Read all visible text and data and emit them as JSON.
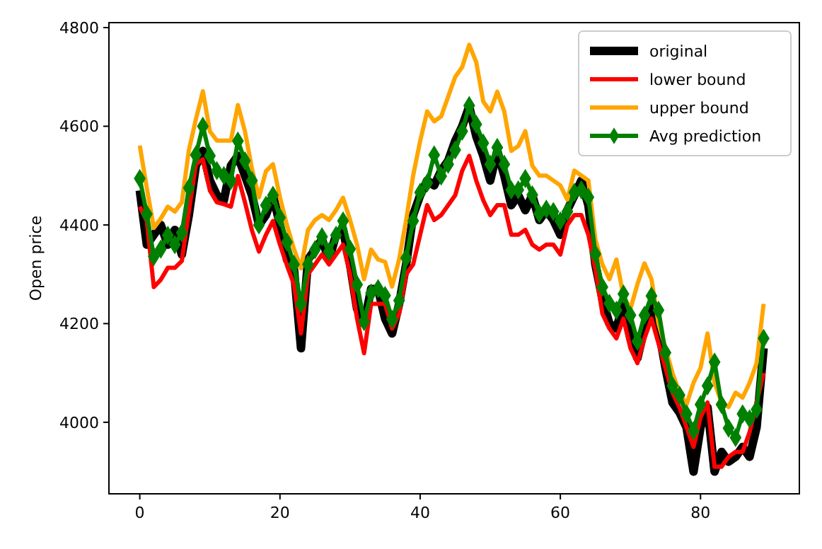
{
  "chart_data": {
    "type": "line",
    "ylabel": "Open price",
    "x": [
      0,
      1,
      2,
      3,
      4,
      5,
      6,
      7,
      8,
      9,
      10,
      11,
      12,
      13,
      14,
      15,
      16,
      17,
      18,
      19,
      20,
      21,
      22,
      23,
      24,
      25,
      26,
      27,
      28,
      29,
      30,
      31,
      32,
      33,
      34,
      35,
      36,
      37,
      38,
      39,
      40,
      41,
      42,
      43,
      44,
      45,
      46,
      47,
      48,
      49,
      50,
      51,
      52,
      53,
      54,
      55,
      56,
      57,
      58,
      59,
      60,
      61,
      62,
      63,
      64,
      65,
      66,
      67,
      68,
      69,
      70,
      71,
      72,
      73,
      74,
      75,
      76,
      77,
      78,
      79,
      80,
      81,
      82,
      83,
      84,
      85,
      86,
      87,
      88,
      89
    ],
    "xlim": [
      -4.4,
      94.1
    ],
    "xticks": [
      0,
      20,
      40,
      60,
      80
    ],
    "ylim": [
      3855,
      4810
    ],
    "yticks": [
      4000,
      4200,
      4400,
      4600,
      4800
    ],
    "legend": "top right",
    "grid": false,
    "series": [
      {
        "name": "original",
        "color": "#000000",
        "values": [
          4470,
          4360,
          4380,
          4400,
          4360,
          4390,
          4340,
          4420,
          4520,
          4550,
          4490,
          4460,
          4450,
          4520,
          4540,
          4500,
          4460,
          4400,
          4420,
          4460,
          4400,
          4330,
          4310,
          4150,
          4330,
          4350,
          4370,
          4330,
          4380,
          4390,
          4320,
          4230,
          4200,
          4270,
          4270,
          4210,
          4180,
          4240,
          4320,
          4420,
          4460,
          4490,
          4480,
          4510,
          4530,
          4570,
          4600,
          4640,
          4580,
          4540,
          4490,
          4550,
          4500,
          4440,
          4460,
          4430,
          4460,
          4410,
          4430,
          4410,
          4380,
          4430,
          4460,
          4490,
          4440,
          4320,
          4250,
          4200,
          4190,
          4240,
          4170,
          4130,
          4190,
          4240,
          4190,
          4110,
          4040,
          4020,
          3990,
          3900,
          3990,
          4030,
          3900,
          3940,
          3920,
          3930,
          3950,
          3930,
          3990,
          4150
        ]
      },
      {
        "name": "lower bound",
        "color": "#ff0000",
        "values": [
          4437,
          4408,
          4274,
          4289,
          4313,
          4313,
          4327,
          4427,
          4523,
          4533,
          4470,
          4446,
          4442,
          4437,
          4499,
          4446,
          4389,
          4346,
          4380,
          4408,
          4360,
          4318,
          4279,
          4180,
          4300,
          4320,
          4340,
          4320,
          4340,
          4360,
          4300,
          4210,
          4140,
          4240,
          4240,
          4240,
          4190,
          4220,
          4300,
          4320,
          4380,
          4440,
          4410,
          4420,
          4440,
          4460,
          4510,
          4540,
          4490,
          4450,
          4420,
          4440,
          4440,
          4380,
          4380,
          4390,
          4360,
          4350,
          4360,
          4360,
          4340,
          4400,
          4420,
          4420,
          4380,
          4310,
          4220,
          4190,
          4170,
          4210,
          4150,
          4120,
          4170,
          4210,
          4160,
          4110,
          4060,
          4030,
          3990,
          3950,
          4010,
          4040,
          3910,
          3910,
          3930,
          3940,
          3940,
          3980,
          4040,
          4100
        ]
      },
      {
        "name": "upper bound",
        "color": "#ffa500",
        "values": [
          4561,
          4475,
          4394,
          4413,
          4437,
          4427,
          4446,
          4551,
          4614,
          4671,
          4590,
          4571,
          4571,
          4571,
          4643,
          4590,
          4514,
          4456,
          4509,
          4523,
          4456,
          4399,
          4351,
          4312,
          4390,
          4410,
          4420,
          4410,
          4430,
          4455,
          4410,
          4360,
          4290,
          4350,
          4330,
          4325,
          4275,
          4330,
          4410,
          4500,
          4570,
          4630,
          4610,
          4620,
          4660,
          4700,
          4720,
          4765,
          4730,
          4650,
          4630,
          4670,
          4630,
          4550,
          4560,
          4590,
          4520,
          4500,
          4500,
          4490,
          4480,
          4451,
          4510,
          4500,
          4490,
          4370,
          4320,
          4290,
          4330,
          4256,
          4230,
          4280,
          4322,
          4290,
          4200,
          4150,
          4100,
          4060,
          4036,
          4080,
          4110,
          4180,
          4080,
          4040,
          4031,
          4060,
          4050,
          4080,
          4120,
          4240
        ]
      },
      {
        "name": "Avg prediction",
        "color": "#008000",
        "marker": "diamond",
        "values": [
          4494,
          4422,
          4336,
          4351,
          4379,
          4360,
          4384,
          4475,
          4542,
          4600,
          4540,
          4510,
          4500,
          4490,
          4570,
          4530,
          4490,
          4400,
          4440,
          4460,
          4415,
          4365,
          4320,
          4240,
          4320,
          4350,
          4376,
          4346,
          4379,
          4408,
          4351,
          4279,
          4204,
          4262,
          4271,
          4257,
          4209,
          4247,
          4333,
          4408,
          4466,
          4485,
          4542,
          4499,
          4523,
          4552,
          4590,
          4642,
          4604,
          4566,
          4523,
          4557,
          4523,
          4471,
          4471,
          4494,
          4461,
          4423,
          4432,
          4427,
          4408,
          4427,
          4466,
          4471,
          4456,
          4341,
          4274,
          4241,
          4227,
          4260,
          4217,
          4164,
          4217,
          4256,
          4227,
          4141,
          4074,
          4055,
          4017,
          3983,
          4036,
          4074,
          4122,
          4036,
          3988,
          3969,
          4017,
          4007,
          4026,
          4170
        ]
      }
    ]
  }
}
